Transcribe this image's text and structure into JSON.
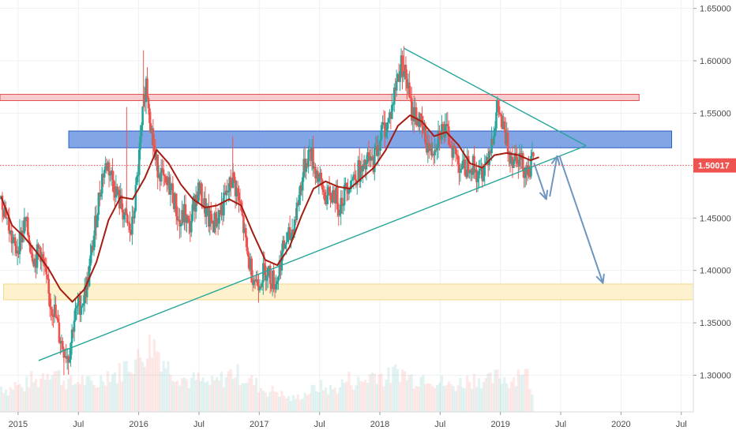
{
  "chart_data": {
    "type": "candlestick",
    "title": "",
    "xlabel": "",
    "ylabel": "",
    "x_ticks": [
      "2015",
      "Jul",
      "2016",
      "Jul",
      "2017",
      "Jul",
      "2018",
      "Jul",
      "2019",
      "Jul",
      "2020",
      "Jul"
    ],
    "x_tick_dates": [
      2015.0,
      2015.5,
      2016.0,
      2016.5,
      2017.0,
      2017.5,
      2018.0,
      2018.5,
      2019.0,
      2019.5,
      2020.0,
      2020.5
    ],
    "y_ticks": [
      "1.30000",
      "1.35000",
      "1.40000",
      "1.45000",
      "1.50000",
      "1.55000",
      "1.60000",
      "1.65000"
    ],
    "y_tick_values": [
      1.3,
      1.35,
      1.4,
      1.45,
      1.5,
      1.55,
      1.6,
      1.65
    ],
    "xlim": [
      2014.85,
      2020.6
    ],
    "ylim": [
      1.265,
      1.658
    ],
    "grid": true,
    "current_price": 1.50017,
    "current_price_label": "1.50017",
    "colors": {
      "up": "#26a69a",
      "down": "#ef5350",
      "ma": "#a51d12",
      "trendline": "#26a69a",
      "arrow": "#6e95c2",
      "resistance_zone": "#f7c6c8",
      "resistance_border": "#e05050",
      "mid_zone": "#6b95e0",
      "mid_border": "#2b5fc4",
      "support_zone": "#fdf0c4",
      "support_border": "#f2d98a",
      "price_tag": "#ef5350"
    },
    "zones": [
      {
        "name": "resistance",
        "x0": 2014.85,
        "x1": 2020.15,
        "y0": 1.562,
        "y1": 1.568
      },
      {
        "name": "mid",
        "x0": 2015.42,
        "x1": 2020.42,
        "y0": 1.517,
        "y1": 1.533
      },
      {
        "name": "support",
        "x0": 2014.88,
        "x1": 2020.6,
        "y0": 1.372,
        "y1": 1.387
      }
    ],
    "trendlines": [
      {
        "name": "rising-support",
        "points": [
          [
            2015.17,
            1.314
          ],
          [
            2019.71,
            1.519
          ]
        ]
      },
      {
        "name": "falling-resistance",
        "points": [
          [
            2018.2,
            1.612
          ],
          [
            2018.98,
            1.564
          ],
          [
            2019.71,
            1.519
          ]
        ]
      }
    ],
    "projection_arrows": [
      {
        "points": [
          [
            2019.28,
            1.502
          ],
          [
            2019.38,
            1.468
          ]
        ]
      },
      {
        "points": [
          [
            2019.41,
            1.471
          ],
          [
            2019.47,
            1.509
          ]
        ]
      },
      {
        "points": [
          [
            2019.49,
            1.509
          ],
          [
            2019.85,
            1.388
          ]
        ]
      }
    ],
    "weekly_close": [
      [
        2014.86,
        1.468
      ],
      [
        2014.9,
        1.455
      ],
      [
        2014.94,
        1.432
      ],
      [
        2014.98,
        1.418
      ],
      [
        2015.02,
        1.432
      ],
      [
        2015.06,
        1.446
      ],
      [
        2015.1,
        1.425
      ],
      [
        2015.14,
        1.409
      ],
      [
        2015.18,
        1.422
      ],
      [
        2015.22,
        1.398
      ],
      [
        2015.26,
        1.371
      ],
      [
        2015.3,
        1.362
      ],
      [
        2015.34,
        1.338
      ],
      [
        2015.38,
        1.325
      ],
      [
        2015.42,
        1.318
      ],
      [
        2015.46,
        1.352
      ],
      [
        2015.5,
        1.366
      ],
      [
        2015.54,
        1.372
      ],
      [
        2015.58,
        1.391
      ],
      [
        2015.62,
        1.425
      ],
      [
        2015.66,
        1.462
      ],
      [
        2015.7,
        1.492
      ],
      [
        2015.74,
        1.502
      ],
      [
        2015.78,
        1.488
      ],
      [
        2015.82,
        1.472
      ],
      [
        2015.86,
        1.46
      ],
      [
        2015.9,
        1.445
      ],
      [
        2015.94,
        1.435
      ],
      [
        2015.98,
        1.478
      ],
      [
        2016.02,
        1.528
      ],
      [
        2016.06,
        1.582
      ],
      [
        2016.1,
        1.542
      ],
      [
        2016.14,
        1.502
      ],
      [
        2016.18,
        1.495
      ],
      [
        2016.22,
        1.478
      ],
      [
        2016.26,
        1.482
      ],
      [
        2016.3,
        1.465
      ],
      [
        2016.34,
        1.442
      ],
      [
        2016.38,
        1.455
      ],
      [
        2016.42,
        1.438
      ],
      [
        2016.46,
        1.465
      ],
      [
        2016.5,
        1.478
      ],
      [
        2016.54,
        1.462
      ],
      [
        2016.58,
        1.448
      ],
      [
        2016.62,
        1.445
      ],
      [
        2016.66,
        1.452
      ],
      [
        2016.7,
        1.462
      ],
      [
        2016.74,
        1.475
      ],
      [
        2016.78,
        1.488
      ],
      [
        2016.82,
        1.472
      ],
      [
        2016.86,
        1.448
      ],
      [
        2016.9,
        1.415
      ],
      [
        2016.94,
        1.398
      ],
      [
        2016.98,
        1.388
      ],
      [
        2017.02,
        1.395
      ],
      [
        2017.06,
        1.402
      ],
      [
        2017.1,
        1.392
      ],
      [
        2017.14,
        1.388
      ],
      [
        2017.18,
        1.412
      ],
      [
        2017.22,
        1.428
      ],
      [
        2017.26,
        1.432
      ],
      [
        2017.3,
        1.452
      ],
      [
        2017.34,
        1.478
      ],
      [
        2017.38,
        1.502
      ],
      [
        2017.42,
        1.515
      ],
      [
        2017.46,
        1.498
      ],
      [
        2017.5,
        1.485
      ],
      [
        2017.54,
        1.472
      ],
      [
        2017.58,
        1.468
      ],
      [
        2017.62,
        1.475
      ],
      [
        2017.66,
        1.462
      ],
      [
        2017.7,
        1.472
      ],
      [
        2017.74,
        1.485
      ],
      [
        2017.78,
        1.488
      ],
      [
        2017.82,
        1.495
      ],
      [
        2017.86,
        1.492
      ],
      [
        2017.9,
        1.505
      ],
      [
        2017.94,
        1.502
      ],
      [
        2017.98,
        1.518
      ],
      [
        2018.02,
        1.535
      ],
      [
        2018.06,
        1.538
      ],
      [
        2018.1,
        1.555
      ],
      [
        2018.14,
        1.582
      ],
      [
        2018.18,
        1.598
      ],
      [
        2018.22,
        1.582
      ],
      [
        2018.26,
        1.552
      ],
      [
        2018.3,
        1.548
      ],
      [
        2018.34,
        1.538
      ],
      [
        2018.38,
        1.525
      ],
      [
        2018.42,
        1.512
      ],
      [
        2018.46,
        1.522
      ],
      [
        2018.5,
        1.535
      ],
      [
        2018.54,
        1.532
      ],
      [
        2018.58,
        1.525
      ],
      [
        2018.62,
        1.512
      ],
      [
        2018.66,
        1.502
      ],
      [
        2018.7,
        1.495
      ],
      [
        2018.74,
        1.505
      ],
      [
        2018.78,
        1.498
      ],
      [
        2018.82,
        1.488
      ],
      [
        2018.86,
        1.498
      ],
      [
        2018.9,
        1.512
      ],
      [
        2018.94,
        1.532
      ],
      [
        2018.98,
        1.555
      ],
      [
        2019.02,
        1.535
      ],
      [
        2019.06,
        1.518
      ],
      [
        2019.1,
        1.508
      ],
      [
        2019.14,
        1.512
      ],
      [
        2019.18,
        1.502
      ],
      [
        2019.22,
        1.495
      ],
      [
        2019.26,
        1.502
      ]
    ],
    "moving_average": [
      [
        2014.86,
        1.47
      ],
      [
        2014.95,
        1.443
      ],
      [
        2015.05,
        1.432
      ],
      [
        2015.15,
        1.418
      ],
      [
        2015.25,
        1.402
      ],
      [
        2015.35,
        1.382
      ],
      [
        2015.45,
        1.37
      ],
      [
        2015.55,
        1.382
      ],
      [
        2015.65,
        1.408
      ],
      [
        2015.75,
        1.448
      ],
      [
        2015.85,
        1.47
      ],
      [
        2015.95,
        1.468
      ],
      [
        2016.05,
        1.488
      ],
      [
        2016.15,
        1.515
      ],
      [
        2016.25,
        1.502
      ],
      [
        2016.35,
        1.482
      ],
      [
        2016.45,
        1.468
      ],
      [
        2016.55,
        1.46
      ],
      [
        2016.65,
        1.462
      ],
      [
        2016.75,
        1.468
      ],
      [
        2016.85,
        1.462
      ],
      [
        2016.95,
        1.435
      ],
      [
        2017.05,
        1.41
      ],
      [
        2017.15,
        1.405
      ],
      [
        2017.25,
        1.422
      ],
      [
        2017.35,
        1.452
      ],
      [
        2017.45,
        1.478
      ],
      [
        2017.55,
        1.485
      ],
      [
        2017.65,
        1.48
      ],
      [
        2017.75,
        1.478
      ],
      [
        2017.85,
        1.488
      ],
      [
        2017.95,
        1.498
      ],
      [
        2018.05,
        1.515
      ],
      [
        2018.15,
        1.538
      ],
      [
        2018.25,
        1.548
      ],
      [
        2018.35,
        1.542
      ],
      [
        2018.45,
        1.528
      ],
      [
        2018.55,
        1.532
      ],
      [
        2018.65,
        1.52
      ],
      [
        2018.75,
        1.502
      ],
      [
        2018.85,
        1.498
      ],
      [
        2018.95,
        1.51
      ],
      [
        2019.05,
        1.512
      ],
      [
        2019.15,
        1.51
      ],
      [
        2019.25,
        1.505
      ],
      [
        2019.32,
        1.508
      ]
    ],
    "volume_bars": [
      [
        2014.86,
        0.35
      ],
      [
        2014.92,
        0.3
      ],
      [
        2014.98,
        0.38
      ],
      [
        2015.04,
        0.32
      ],
      [
        2015.1,
        0.45
      ],
      [
        2015.16,
        0.4
      ],
      [
        2015.22,
        0.55
      ],
      [
        2015.28,
        0.6
      ],
      [
        2015.34,
        0.5
      ],
      [
        2015.4,
        0.42
      ],
      [
        2015.46,
        0.38
      ],
      [
        2015.52,
        0.45
      ],
      [
        2015.58,
        0.4
      ],
      [
        2015.64,
        0.35
      ],
      [
        2015.7,
        0.48
      ],
      [
        2015.76,
        0.55
      ],
      [
        2015.82,
        0.5
      ],
      [
        2015.88,
        0.62
      ],
      [
        2015.94,
        0.68
      ],
      [
        2016.0,
        0.72
      ],
      [
        2016.06,
        0.85
      ],
      [
        2016.12,
        0.95
      ],
      [
        2016.18,
        0.8
      ],
      [
        2016.24,
        0.62
      ],
      [
        2016.3,
        0.55
      ],
      [
        2016.36,
        0.48
      ],
      [
        2016.42,
        0.42
      ],
      [
        2016.48,
        0.45
      ],
      [
        2016.54,
        0.4
      ],
      [
        2016.6,
        0.38
      ],
      [
        2016.66,
        0.42
      ],
      [
        2016.72,
        0.48
      ],
      [
        2016.78,
        0.55
      ],
      [
        2016.84,
        0.5
      ],
      [
        2016.9,
        0.45
      ],
      [
        2016.96,
        0.4
      ],
      [
        2017.02,
        0.32
      ],
      [
        2017.08,
        0.28
      ],
      [
        2017.14,
        0.3
      ],
      [
        2017.2,
        0.22
      ],
      [
        2017.26,
        0.18
      ],
      [
        2017.32,
        0.2
      ],
      [
        2017.38,
        0.25
      ],
      [
        2017.44,
        0.3
      ],
      [
        2017.5,
        0.35
      ],
      [
        2017.56,
        0.32
      ],
      [
        2017.62,
        0.3
      ],
      [
        2017.68,
        0.38
      ],
      [
        2017.74,
        0.45
      ],
      [
        2017.8,
        0.4
      ],
      [
        2017.86,
        0.42
      ],
      [
        2017.92,
        0.5
      ],
      [
        2017.98,
        0.55
      ],
      [
        2018.04,
        0.45
      ],
      [
        2018.1,
        0.5
      ],
      [
        2018.16,
        0.58
      ],
      [
        2018.22,
        0.5
      ],
      [
        2018.28,
        0.45
      ],
      [
        2018.34,
        0.48
      ],
      [
        2018.4,
        0.52
      ],
      [
        2018.46,
        0.42
      ],
      [
        2018.52,
        0.4
      ],
      [
        2018.58,
        0.35
      ],
      [
        2018.64,
        0.38
      ],
      [
        2018.7,
        0.42
      ],
      [
        2018.76,
        0.45
      ],
      [
        2018.82,
        0.48
      ],
      [
        2018.88,
        0.4
      ],
      [
        2018.94,
        0.45
      ],
      [
        2019.0,
        0.5
      ],
      [
        2019.06,
        0.42
      ],
      [
        2019.12,
        0.48
      ],
      [
        2019.18,
        0.62
      ],
      [
        2019.24,
        0.45
      ],
      [
        2019.28,
        0.05
      ]
    ]
  }
}
